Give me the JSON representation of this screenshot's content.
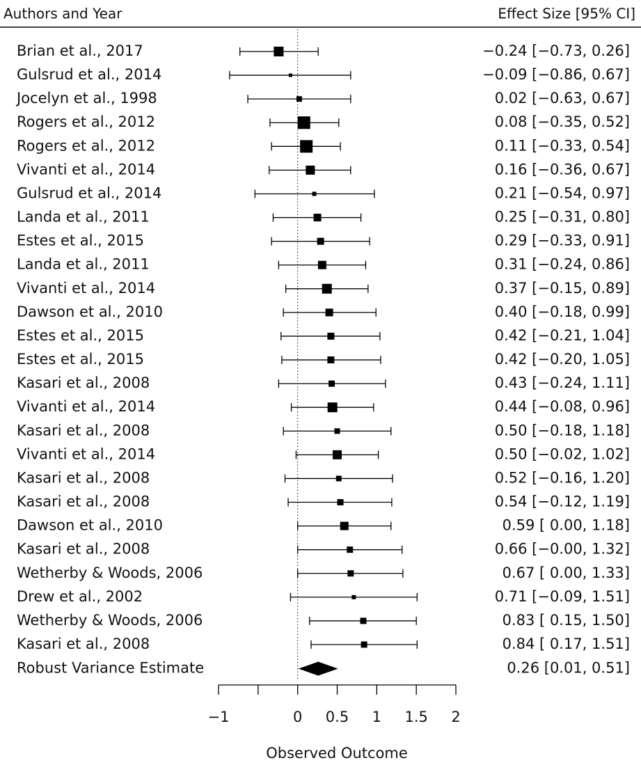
{
  "chart_data": {
    "type": "forest",
    "left_header": "Authors and Year",
    "right_header": "Effect Size [95% CI]",
    "x_label": "Observed Outcome",
    "xlim": [
      -1,
      2
    ],
    "xticks": [
      {
        "value": -1,
        "label": "−1"
      },
      {
        "value": -0.5,
        "label": null
      },
      0,
      0.5,
      1,
      1.5,
      2
    ],
    "reference_line": 0,
    "color": "#000000",
    "categories": [
      "Brian et al., 2017",
      "Gulsrud et al., 2014",
      "Jocelyn et al., 1998",
      "Rogers et al., 2012",
      "Rogers et al., 2012",
      "Vivanti et al., 2014",
      "Gulsrud et al., 2014",
      "Landa et al., 2011",
      "Estes et al., 2015",
      "Landa et al., 2011",
      "Vivanti et al., 2014",
      "Dawson et al., 2010",
      "Estes et al., 2015",
      "Estes et al., 2015",
      "Kasari et al., 2008",
      "Vivanti et al., 2014",
      "Kasari et al., 2008",
      "Vivanti et al., 2014",
      "Kasari et al., 2008",
      "Kasari et al., 2008",
      "Dawson et al., 2010",
      "Kasari et al., 2008",
      "Wetherby & Woods, 2006",
      "Drew et al., 2002",
      "Wetherby & Woods, 2006",
      "Kasari et al., 2008"
    ],
    "values": [
      -0.24,
      -0.09,
      0.02,
      0.08,
      0.11,
      0.16,
      0.21,
      0.25,
      0.29,
      0.31,
      0.37,
      0.4,
      0.42,
      0.42,
      0.43,
      0.44,
      0.5,
      0.5,
      0.52,
      0.54,
      0.59,
      0.66,
      0.67,
      0.71,
      0.83,
      0.84
    ],
    "ci_lower": [
      -0.73,
      -0.86,
      -0.63,
      -0.35,
      -0.33,
      -0.36,
      -0.54,
      -0.31,
      -0.33,
      -0.24,
      -0.15,
      -0.18,
      -0.21,
      -0.2,
      -0.24,
      -0.08,
      -0.18,
      -0.02,
      -0.16,
      -0.12,
      0.0,
      0.0,
      0.0,
      -0.09,
      0.15,
      0.17
    ],
    "ci_upper": [
      0.26,
      0.67,
      0.67,
      0.52,
      0.54,
      0.67,
      0.97,
      0.8,
      0.91,
      0.86,
      0.89,
      0.99,
      1.04,
      1.05,
      1.11,
      0.96,
      1.18,
      1.02,
      1.2,
      1.19,
      1.18,
      1.32,
      1.33,
      1.51,
      1.5,
      1.51
    ],
    "value_labels": [
      "−0.24 [−0.73, 0.26]",
      "−0.09 [−0.86, 0.67]",
      "0.02 [−0.63, 0.67]",
      "0.08 [−0.35, 0.52]",
      "0.11 [−0.33, 0.54]",
      "0.16 [−0.36, 0.67]",
      "0.21 [−0.54, 0.97]",
      "0.25 [−0.31, 0.80]",
      "0.29 [−0.33, 0.91]",
      "0.31 [−0.24, 0.86]",
      "0.37 [−0.15, 0.89]",
      "0.40 [−0.18, 0.99]",
      "0.42 [−0.21, 1.04]",
      "0.42 [−0.20, 1.05]",
      "0.43 [−0.24, 1.11]",
      "0.44 [−0.08, 0.96]",
      "0.50 [−0.18, 1.18]",
      "0.50 [−0.02, 1.02]",
      "0.52 [−0.16, 1.20]",
      "0.54 [−0.12, 1.19]",
      "0.59 [ 0.00, 1.18]",
      "0.66 [−0.00, 1.32]",
      "0.67 [ 0.00, 1.33]",
      "0.71 [−0.09, 1.51]",
      "0.83 [ 0.15, 1.50]",
      "0.84 [ 0.17, 1.51]"
    ],
    "marker_sizes": [
      14,
      5,
      8,
      18,
      18,
      13,
      6,
      11,
      10,
      12,
      14,
      11,
      10,
      10,
      9,
      14,
      8,
      13,
      8,
      9,
      12,
      9,
      9,
      6,
      9,
      9
    ],
    "summary": {
      "label": "Robust Variance Estimate",
      "value": 0.26,
      "ci_lower": 0.01,
      "ci_upper": 0.51,
      "value_label": "0.26 [0.01, 0.51]"
    }
  }
}
